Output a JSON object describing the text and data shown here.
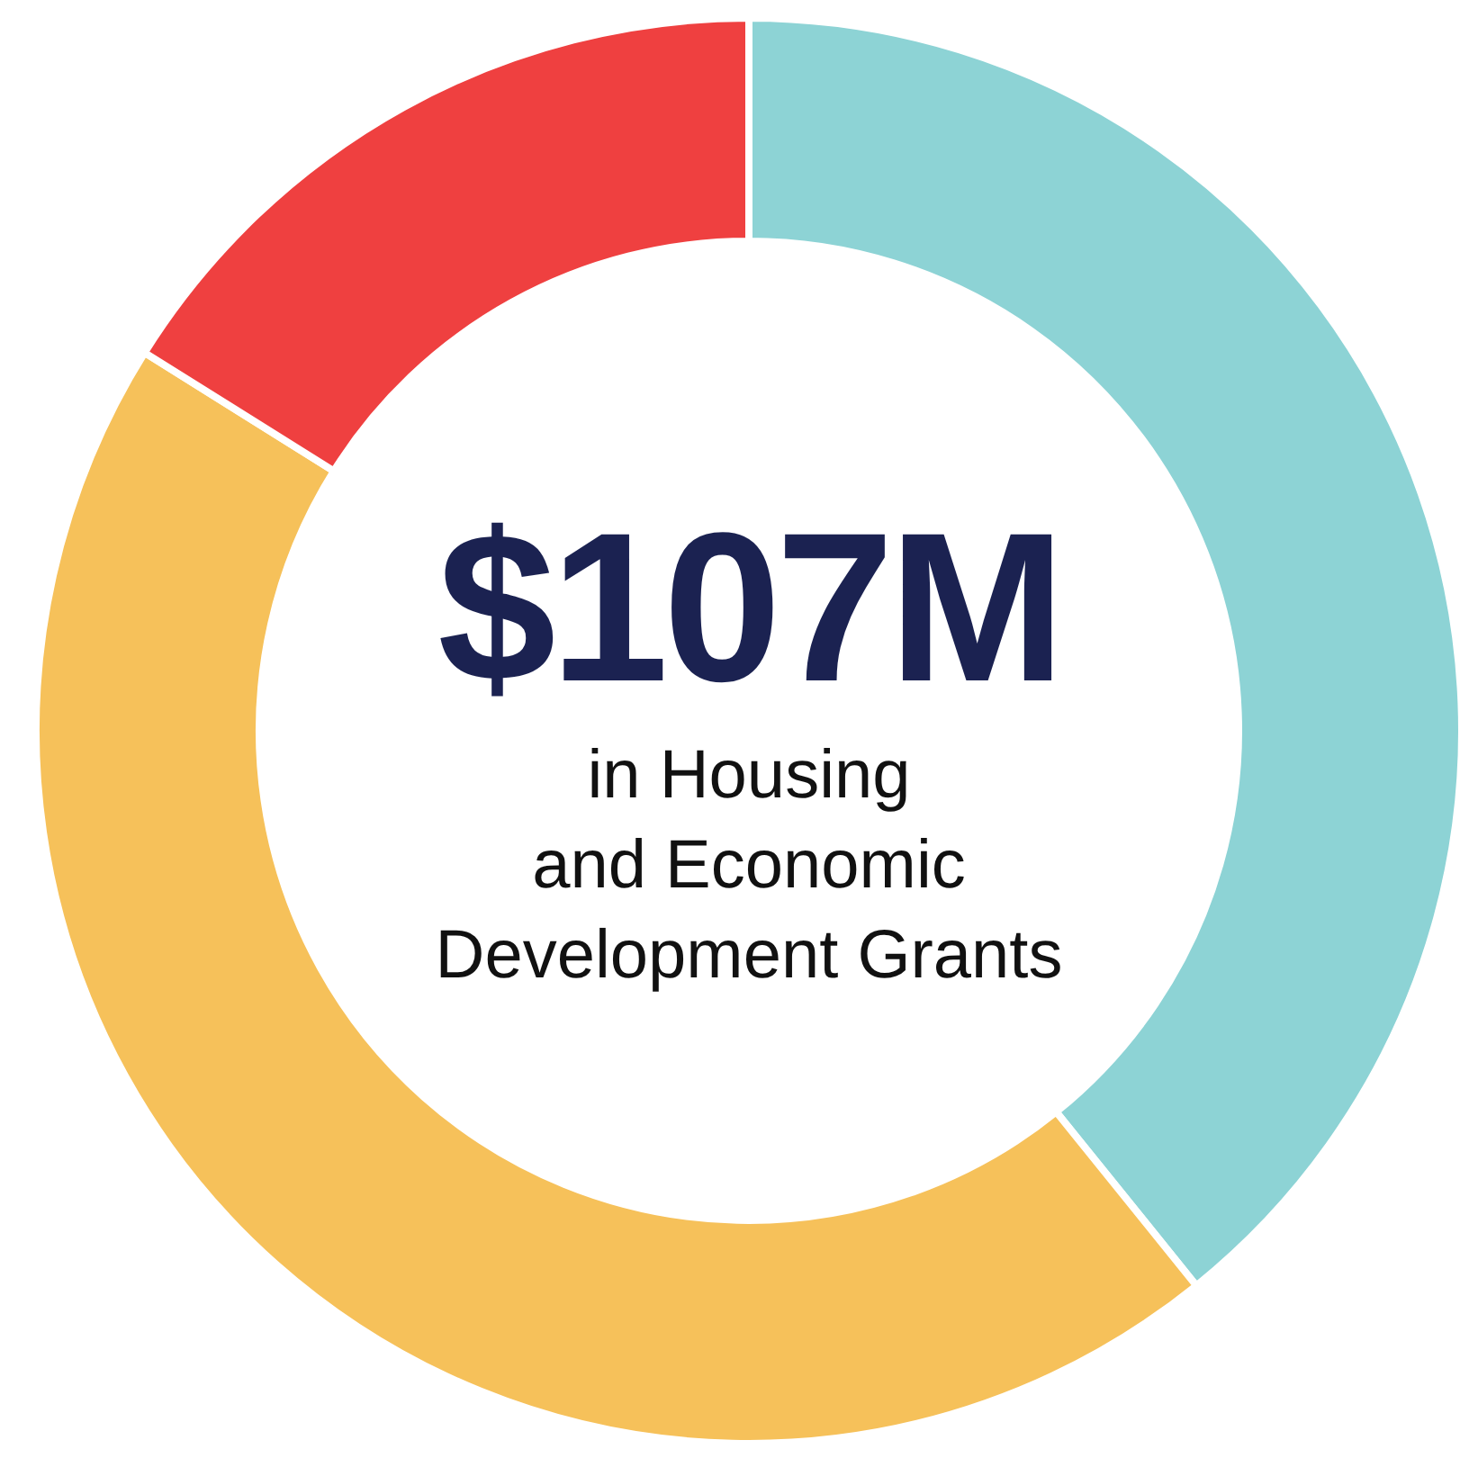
{
  "chart_data": {
    "type": "donut",
    "title": "$107M",
    "subtitle": "in Housing\nand Economic\nDevelopment Grants",
    "categories": [
      null,
      null,
      null
    ],
    "values": [
      39.2,
      44.7,
      16.1
    ],
    "colors": [
      "#8dd3d5",
      "#f6c15a",
      "#ef4040"
    ],
    "legend": false
  }
}
